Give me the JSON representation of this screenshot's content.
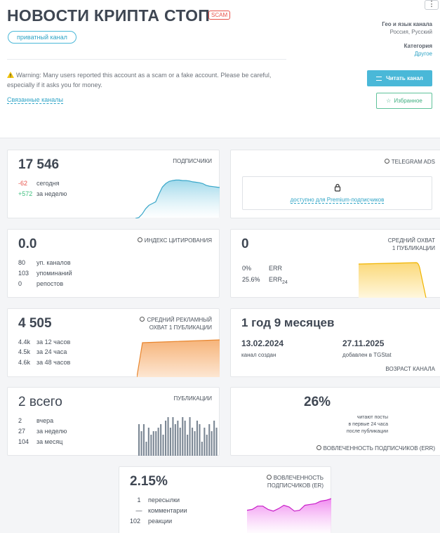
{
  "header": {
    "title": "НОВОСТИ КРИПТА СТОП",
    "scam_badge": "SCAM",
    "private_label": "приватный канал",
    "warning": "Warning: Many users reported this account as a scam or a fake account. Please be careful, especially if it asks you for money.",
    "related": "Связанные каналы",
    "menu": "⋮",
    "geo_label": "Гео и язык канала",
    "geo_value": "Россия, Русский",
    "category_label": "Категория",
    "category_value": "Другое",
    "read_button": "Читать канал",
    "fav_button": "Избранное"
  },
  "subscribers": {
    "value": "17 546",
    "label": "ПОДПИСЧИКИ",
    "today_n": "-62",
    "today_l": "сегодня",
    "week_n": "+572",
    "week_l": "за неделю",
    "series": [
      0,
      2,
      10,
      22,
      30,
      34,
      38,
      56,
      72,
      80,
      85,
      87,
      88,
      88,
      87,
      87,
      86,
      84,
      83,
      82,
      80,
      76,
      74,
      73,
      72,
      71
    ]
  },
  "ads": {
    "label": "TELEGRAM ADS",
    "premium": "доступно для Premium-подписчиков"
  },
  "citation": {
    "value": "0.0",
    "label": "ИНДЕКС ЦИТИРОВАНИЯ",
    "rows": [
      {
        "n": "80",
        "l": "уп. каналов"
      },
      {
        "n": "103",
        "l": "упоминаний"
      },
      {
        "n": "0",
        "l": "репостов"
      }
    ]
  },
  "reach": {
    "value": "0",
    "label1": "СРЕДНИЙ ОХВАТ",
    "label2": "1 ПУБЛИКАЦИИ",
    "err_n": "0%",
    "err_l": "ERR",
    "err24_n": "25.6%",
    "err24_l": "ERR",
    "err24_sub": "24"
  },
  "ad_reach": {
    "value": "4 505",
    "label1": "СРЕДНИЙ РЕКЛАМНЫЙ",
    "label2": "ОХВАТ 1 ПУБЛИКАЦИИ",
    "rows": [
      {
        "n": "4.4k",
        "l": "за 12 часов"
      },
      {
        "n": "4.5k",
        "l": "за 24 часа"
      },
      {
        "n": "4.6k",
        "l": "за 48 часов"
      }
    ]
  },
  "age": {
    "value": "1 год 9 месяцев",
    "created_date": "13.02.2024",
    "created_label": "канал создан",
    "added_date": "27.11.2025",
    "added_label": "добавлен в TGStat",
    "label": "ВОЗРАСТ КАНАЛА"
  },
  "posts": {
    "value": "2 всего",
    "label": "ПУБЛИКАЦИИ",
    "rows": [
      {
        "n": "2",
        "l": "вчера"
      },
      {
        "n": "27",
        "l": "за неделю"
      },
      {
        "n": "104",
        "l": "за месяц"
      }
    ],
    "bars": [
      45,
      35,
      45,
      20,
      40,
      30,
      35,
      35,
      40,
      45,
      30,
      50,
      55,
      40,
      55,
      45,
      50,
      40,
      55,
      50,
      30,
      55,
      40,
      35,
      50,
      45,
      20,
      40,
      30,
      45,
      35,
      50,
      40
    ]
  },
  "engagement": {
    "value": "26%",
    "line1": "читают посты",
    "line2": "в первые 24 часа",
    "line3": "после публикации",
    "label": "ВОВЛЕЧЕННОСТЬ ПОДПИСЧИКОВ (ERR)"
  },
  "er": {
    "value": "2.15%",
    "label1": "ВОВЛЕЧЕННОСТЬ",
    "label2": "ПОДПИСЧИКОВ (ER)",
    "rows": [
      {
        "n": "1",
        "l": "пересылки"
      },
      {
        "n": "—",
        "l": "комментарии"
      },
      {
        "n": "102",
        "l": "реакции"
      }
    ],
    "series": [
      60,
      62,
      70,
      70,
      62,
      58,
      64,
      72,
      68,
      58,
      60,
      72,
      74,
      76,
      82,
      84,
      88
    ]
  },
  "colors": {
    "accent": "#4ab8d8",
    "negative": "#e8534b",
    "positive": "#3fbf7f",
    "subs_chart": "#9fd8ea",
    "reach_chart": "#fbe39a",
    "ad_chart": "#f8c99a",
    "posts_bar": "#7b8794",
    "er_chart": "#f08cf0"
  }
}
